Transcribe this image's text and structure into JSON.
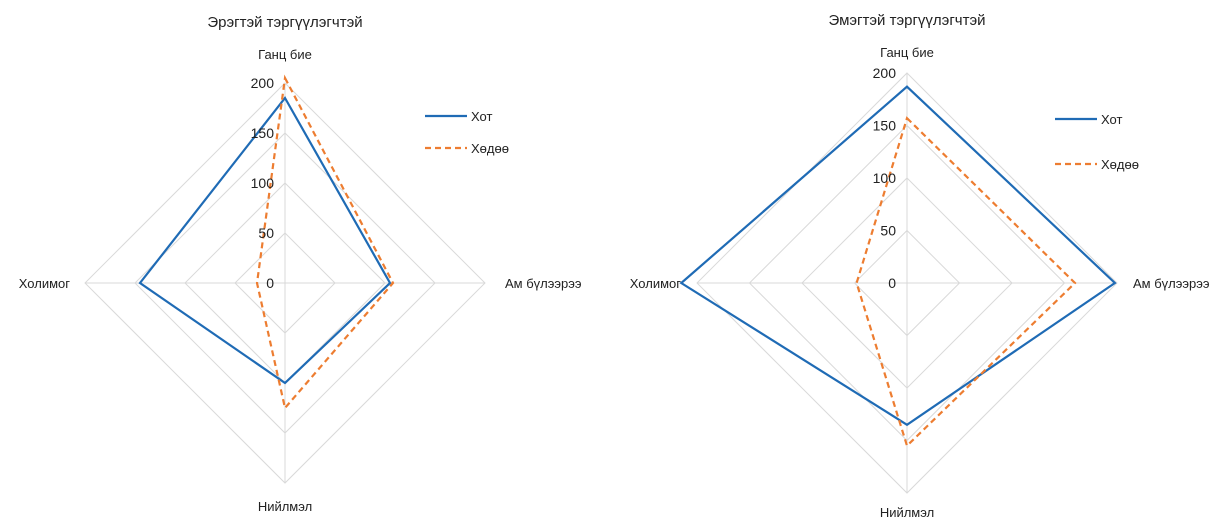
{
  "chart_data": [
    {
      "type": "radar",
      "title": "Эрэгтэй тэргүүлэгчтэй",
      "axes": [
        "Ганц бие",
        "Ам бүлээрээ",
        "Нийлмэл",
        "Холимог"
      ],
      "ticks": [
        "0",
        "50",
        "100",
        "150",
        "200"
      ],
      "rlim": [
        0,
        200
      ],
      "series": [
        {
          "name": "Хот",
          "values": [
            185,
            105,
            100,
            145
          ],
          "color": "#1f6bb5",
          "dash": "solid"
        },
        {
          "name": "Хөдөө",
          "values": [
            205,
            108,
            125,
            28
          ],
          "color": "#ed7d31",
          "dash": "dashed"
        }
      ],
      "legend": "right"
    },
    {
      "type": "radar",
      "title": "Эмэгтэй тэргүүлэгчтэй",
      "axes": [
        "Ганц бие",
        "Ам бүлээрээ",
        "Нийлмэл",
        "Холимог"
      ],
      "ticks": [
        "0",
        "50",
        "100",
        "150",
        "200"
      ],
      "rlim": [
        0,
        200
      ],
      "series": [
        {
          "name": "Хот",
          "values": [
            187,
            198,
            135,
            215
          ],
          "color": "#1f6bb5",
          "dash": "solid"
        },
        {
          "name": "Хөдөө",
          "values": [
            157,
            160,
            155,
            48
          ],
          "color": "#ed7d31",
          "dash": "dashed"
        }
      ],
      "legend": "right"
    }
  ]
}
